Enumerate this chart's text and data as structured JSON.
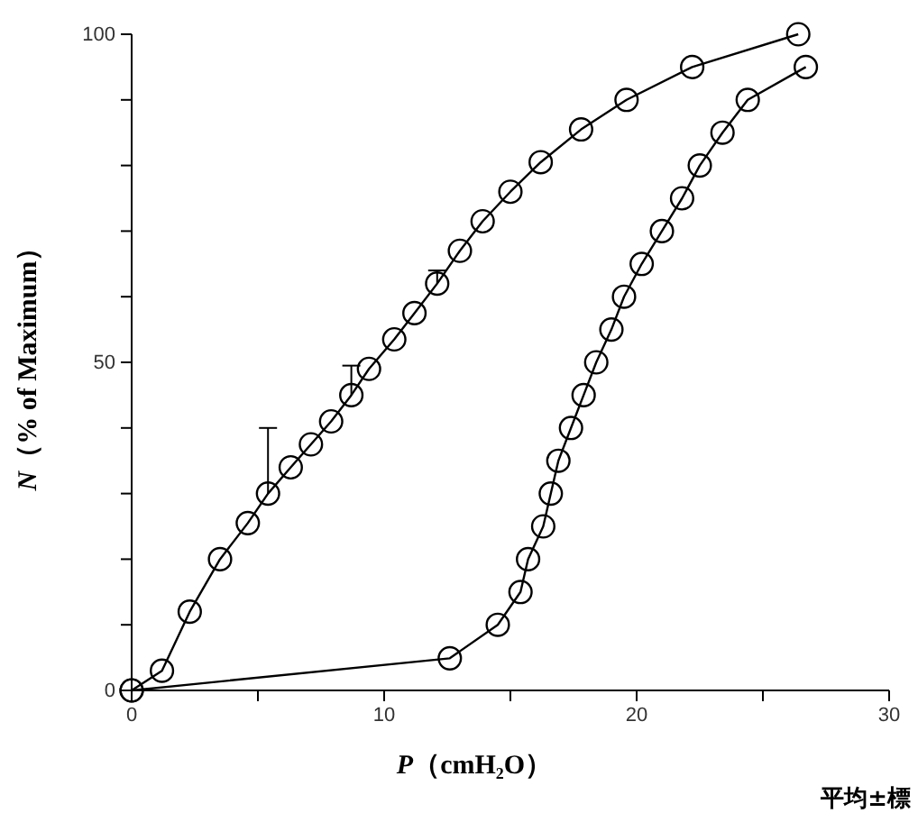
{
  "chart_data": {
    "type": "line",
    "xlabel": "P（cmH₂O）",
    "ylabel": "N（% of Maximum）",
    "xlim": [
      0,
      30
    ],
    "ylim": [
      0,
      100
    ],
    "xticks": [
      0,
      {
        "value": 5,
        "label": null
      },
      10,
      {
        "value": 15,
        "label": null
      },
      20,
      {
        "value": 25,
        "label": null
      },
      30
    ],
    "yticks": [
      0,
      {
        "value": 10,
        "label": null
      },
      {
        "value": 20,
        "label": null
      },
      {
        "value": 30,
        "label": null
      },
      {
        "value": 40,
        "label": null
      },
      50,
      {
        "value": 60,
        "label": null
      },
      {
        "value": 70,
        "label": null
      },
      {
        "value": 80,
        "label": null
      },
      {
        "value": 90,
        "label": null
      },
      100
    ],
    "marker": "circle",
    "line_style": "solid",
    "annotations": [
      "平均±標"
    ],
    "series": [
      {
        "color": "#000000",
        "x": [
          0,
          12.6,
          14.5,
          15.4,
          15.7,
          16.3,
          16.6,
          16.9,
          17.4,
          17.9,
          18.4,
          19.0,
          19.5,
          20.2,
          21.0,
          21.8,
          22.5,
          23.4,
          24.4,
          26.7
        ],
        "values": [
          0,
          4.9,
          10,
          15,
          20,
          25,
          30,
          35,
          40,
          45,
          50,
          55,
          60,
          65,
          70,
          75,
          80,
          85,
          90,
          95
        ]
      },
      {
        "color": "#000000",
        "x": [
          0,
          1.2,
          2.3,
          3.5,
          4.6,
          5.4,
          6.3,
          7.1,
          7.9,
          8.7,
          9.4,
          10.4,
          11.2,
          12.1,
          13.0,
          13.9,
          15.0,
          16.2,
          17.8,
          19.6,
          22.2,
          26.4
        ],
        "values": [
          0,
          3,
          12,
          20,
          25.5,
          30,
          34,
          37.5,
          41,
          45,
          49,
          53.5,
          57.5,
          62,
          67,
          71.5,
          76,
          80.5,
          85.5,
          90,
          95,
          100
        ],
        "errors": [
          null,
          null,
          null,
          null,
          null,
          [
            30,
            40
          ],
          null,
          null,
          null,
          [
            45,
            49.5
          ],
          null,
          null,
          null,
          [
            62,
            64
          ],
          null,
          null,
          null,
          null,
          null,
          null,
          null,
          null
        ]
      }
    ]
  }
}
